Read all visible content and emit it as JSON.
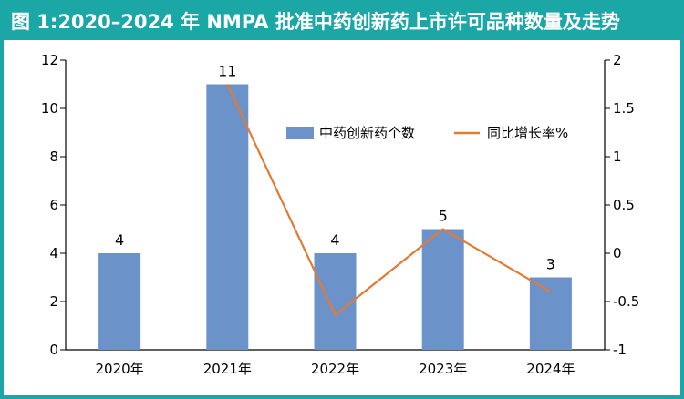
{
  "chart_data": {
    "type": "bar",
    "title": "图 1:2020–2024 年 NMPA 批准中药创新药上市许可品种数量及走势",
    "categories": [
      "2020年",
      "2021年",
      "2022年",
      "2023年",
      "2024年"
    ],
    "series": [
      {
        "name": "中药创新药个数",
        "type": "bar",
        "axis": "left",
        "values": [
          4,
          11,
          4,
          5,
          3
        ],
        "color": "#6b93c9"
      },
      {
        "name": "同比增长率%",
        "type": "line",
        "axis": "right",
        "values": [
          null,
          1.75,
          -0.64,
          0.25,
          -0.4
        ],
        "color": "#e27a33"
      }
    ],
    "ylim": [
      0,
      12
    ],
    "yticks": [
      0,
      2,
      4,
      6,
      8,
      10,
      12
    ],
    "ylim_right": [
      -1,
      2
    ],
    "yticks_right": [
      "-1",
      "-0.5",
      "0",
      "0.5",
      "1",
      "1.5",
      "2"
    ],
    "legend_position": "top-right",
    "grid": false,
    "theme_color": "#1aa7a6"
  }
}
